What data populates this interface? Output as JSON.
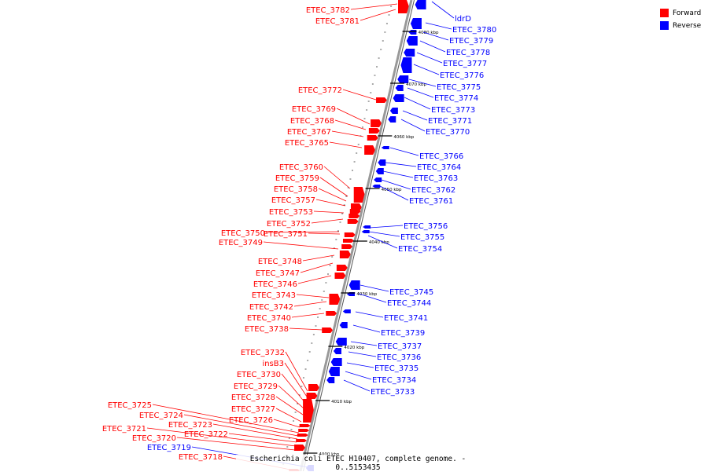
{
  "caption": "Escherichia coli ETEC H10407, complete genome. - 0..5153435",
  "legend": [
    {
      "label": "Forward",
      "color": "#ff0000"
    },
    {
      "label": "Reverse",
      "color": "#0000ff"
    }
  ],
  "colors": {
    "forward": "#ff0000",
    "reverse": "#0000ff",
    "backbone": "#999999",
    "tick": "#000000"
  },
  "scale_marks": [
    "4000 kbp",
    "4010 kbp",
    "4020 kbp",
    "4030 kbp",
    "4040 kbp",
    "4050 kbp",
    "4060 kbp",
    "4070 kbp",
    "4080 kbp"
  ],
  "forward_genes": [
    "ETEC_3782",
    "ETEC_3781",
    "ETEC_3772",
    "ETEC_3769",
    "ETEC_3768",
    "ETEC_3767",
    "ETEC_3765",
    "ETEC_3760",
    "ETEC_3759",
    "ETEC_3758",
    "ETEC_3757",
    "ETEC_3753",
    "ETEC_3752",
    "ETEC_3750",
    "ETEC_3751",
    "ETEC_3749",
    "ETEC_3748",
    "ETEC_3747",
    "ETEC_3746",
    "ETEC_3743",
    "ETEC_3742",
    "ETEC_3740",
    "ETEC_3738",
    "ETEC_3732",
    "insB3",
    "ETEC_3730",
    "ETEC_3729",
    "ETEC_3728",
    "ETEC_3727",
    "ETEC_3726",
    "ETEC_3725",
    "ETEC_3724",
    "ETEC_3723",
    "ETEC_3722",
    "ETEC_3721",
    "ETEC_3720",
    "ETEC_3718"
  ],
  "reverse_genes": [
    "ldrD",
    "ETEC_3780",
    "ETEC_3779",
    "ETEC_3778",
    "ETEC_3777",
    "ETEC_3776",
    "ETEC_3775",
    "ETEC_3774",
    "ETEC_3773",
    "ETEC_3771",
    "ETEC_3770",
    "ETEC_3766",
    "ETEC_3764",
    "ETEC_3763",
    "ETEC_3762",
    "ETEC_3761",
    "ETEC_3756",
    "ETEC_3755",
    "ETEC_3754",
    "ETEC_3745",
    "ETEC_3744",
    "ETEC_3741",
    "ETEC_3739",
    "ETEC_3737",
    "ETEC_3736",
    "ETEC_3735",
    "ETEC_3734",
    "ETEC_3733",
    "ETEC_3719"
  ]
}
